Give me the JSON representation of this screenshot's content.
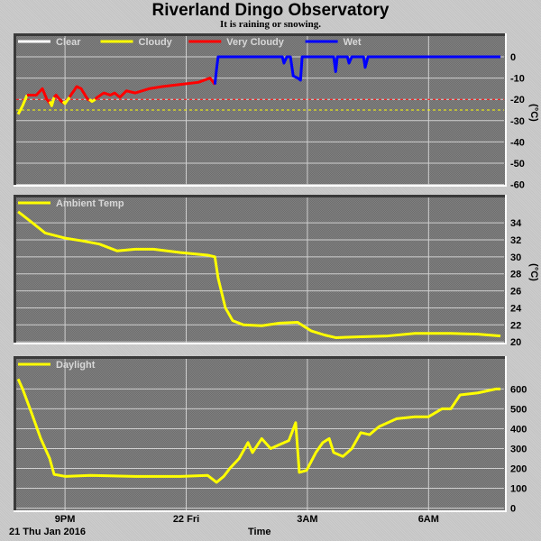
{
  "title": "Riverland Dingo Observatory",
  "subtitle": "It is raining or snowing.",
  "x_axis": {
    "label": "Time",
    "date_label": "21 Thu Jan 2016",
    "ticks": [
      {
        "h": 21,
        "label": "9PM"
      },
      {
        "h": 24,
        "label": "22 Fri"
      },
      {
        "h": 27,
        "label": "3AM"
      },
      {
        "h": 30,
        "label": "6AM"
      }
    ],
    "range": [
      19.77,
      31.89
    ]
  },
  "colors": {
    "clear": "#ffffff",
    "cloudy": "#ffff00",
    "very_cloudy": "#ff0000",
    "wet": "#0000ff",
    "plot_bg": "#7a7a7a"
  },
  "chart_data": [
    {
      "type": "line",
      "name": "cloud",
      "unit": "(°C)",
      "ylim": [
        -61,
        11
      ],
      "yticks": [
        0,
        -10,
        -20,
        -30,
        -40,
        -50,
        -60
      ],
      "thresholds": [
        {
          "value": -20,
          "color": "#ff0000"
        },
        {
          "value": -25,
          "color": "#ffff00"
        }
      ],
      "legend": [
        {
          "label": "Clear",
          "color": "#ffffff"
        },
        {
          "label": "Cloudy",
          "color": "#ffff00"
        },
        {
          "label": "Very Cloudy",
          "color": "#ff0000"
        },
        {
          "label": "Wet",
          "color": "#0000ff"
        }
      ],
      "segments": [
        {
          "color": "#ffff00",
          "points": [
            [
              19.84,
              -27
            ],
            [
              19.95,
              -23
            ],
            [
              20.06,
              -18
            ]
          ]
        },
        {
          "color": "#ff0000",
          "points": [
            [
              20.06,
              -18
            ],
            [
              20.29,
              -18
            ],
            [
              20.44,
              -15
            ],
            [
              20.55,
              -20
            ],
            [
              20.67,
              -23
            ]
          ]
        },
        {
          "color": "#ffff00",
          "points": [
            [
              20.62,
              -21
            ],
            [
              20.67,
              -23
            ],
            [
              20.73,
              -19
            ]
          ]
        },
        {
          "color": "#ff0000",
          "points": [
            [
              20.73,
              -19
            ],
            [
              20.78,
              -18
            ],
            [
              20.91,
              -21
            ],
            [
              21.0,
              -22
            ]
          ]
        },
        {
          "color": "#ffff00",
          "points": [
            [
              20.95,
              -21
            ],
            [
              21.0,
              -22
            ],
            [
              21.11,
              -19
            ]
          ]
        },
        {
          "color": "#ff0000",
          "points": [
            [
              21.11,
              -19
            ],
            [
              21.29,
              -14
            ],
            [
              21.4,
              -15
            ],
            [
              21.56,
              -20
            ],
            [
              21.67,
              -21
            ]
          ]
        },
        {
          "color": "#ffff00",
          "points": [
            [
              21.6,
              -20
            ],
            [
              21.67,
              -21
            ],
            [
              21.75,
              -20
            ]
          ]
        },
        {
          "color": "#ff0000",
          "points": [
            [
              21.75,
              -20
            ],
            [
              21.8,
              -19
            ],
            [
              21.96,
              -17
            ],
            [
              22.12,
              -18
            ],
            [
              22.23,
              -17
            ],
            [
              22.36,
              -19
            ],
            [
              22.52,
              -16
            ],
            [
              22.74,
              -17
            ],
            [
              23.08,
              -15
            ],
            [
              23.41,
              -14
            ],
            [
              23.86,
              -13
            ],
            [
              24.3,
              -12
            ],
            [
              24.59,
              -10
            ],
            [
              24.71,
              -13
            ]
          ]
        },
        {
          "color": "#0000ff",
          "points": [
            [
              24.71,
              -13
            ],
            [
              24.75,
              -6
            ],
            [
              24.79,
              0
            ],
            [
              26.38,
              0
            ],
            [
              26.42,
              -3
            ],
            [
              26.49,
              0
            ],
            [
              26.58,
              0
            ],
            [
              26.65,
              -9
            ],
            [
              26.76,
              -10
            ],
            [
              26.83,
              -11
            ],
            [
              26.87,
              0
            ],
            [
              27.65,
              0
            ],
            [
              27.7,
              -7
            ],
            [
              27.74,
              0
            ],
            [
              27.99,
              0
            ],
            [
              28.03,
              -3
            ],
            [
              28.1,
              0
            ],
            [
              28.39,
              0
            ],
            [
              28.43,
              -5
            ],
            [
              28.5,
              0
            ],
            [
              31.78,
              0
            ]
          ]
        }
      ]
    },
    {
      "type": "line",
      "name": "Ambient Temp",
      "unit": "(°C)",
      "ylim": [
        19.7,
        37.3
      ],
      "yticks": [
        34,
        32,
        30,
        28,
        26,
        24,
        22,
        20
      ],
      "color": "#ffff00",
      "points": [
        [
          19.84,
          35.3
        ],
        [
          20.06,
          34.5
        ],
        [
          20.51,
          32.8
        ],
        [
          21.0,
          32.2
        ],
        [
          21.4,
          31.9
        ],
        [
          21.85,
          31.5
        ],
        [
          22.29,
          30.7
        ],
        [
          22.74,
          30.9
        ],
        [
          23.19,
          30.9
        ],
        [
          23.86,
          30.5
        ],
        [
          24.53,
          30.2
        ],
        [
          24.71,
          30.0
        ],
        [
          24.79,
          27.5
        ],
        [
          24.97,
          24
        ],
        [
          25.15,
          22.5
        ],
        [
          25.42,
          22
        ],
        [
          25.87,
          21.9
        ],
        [
          26.31,
          22.2
        ],
        [
          26.76,
          22.3
        ],
        [
          27.09,
          21.3
        ],
        [
          27.43,
          20.8
        ],
        [
          27.7,
          20.5
        ],
        [
          28.32,
          20.6
        ],
        [
          28.99,
          20.7
        ],
        [
          29.66,
          21
        ],
        [
          30.55,
          21
        ],
        [
          31.22,
          20.9
        ],
        [
          31.78,
          20.7
        ]
      ]
    },
    {
      "type": "line",
      "name": "Daylight",
      "unit": "",
      "ylim": [
        -20,
        765
      ],
      "yticks": [
        600,
        500,
        400,
        300,
        200,
        100,
        0
      ],
      "color": "#ffff00",
      "points": [
        [
          19.84,
          650
        ],
        [
          19.95,
          600
        ],
        [
          20.17,
          480
        ],
        [
          20.4,
          350
        ],
        [
          20.62,
          250
        ],
        [
          20.73,
          170
        ],
        [
          21.0,
          160
        ],
        [
          21.63,
          165
        ],
        [
          22.74,
          160
        ],
        [
          23.86,
          160
        ],
        [
          24.53,
          165
        ],
        [
          24.75,
          130
        ],
        [
          24.93,
          160
        ],
        [
          25.08,
          200
        ],
        [
          25.31,
          250
        ],
        [
          25.53,
          330
        ],
        [
          25.64,
          280
        ],
        [
          25.87,
          350
        ],
        [
          26.09,
          300
        ],
        [
          26.31,
          320
        ],
        [
          26.54,
          340
        ],
        [
          26.71,
          430
        ],
        [
          26.8,
          180
        ],
        [
          26.98,
          190
        ],
        [
          27.21,
          280
        ],
        [
          27.38,
          330
        ],
        [
          27.54,
          350
        ],
        [
          27.65,
          280
        ],
        [
          27.88,
          260
        ],
        [
          28.1,
          300
        ],
        [
          28.32,
          380
        ],
        [
          28.54,
          370
        ],
        [
          28.77,
          410
        ],
        [
          29.21,
          450
        ],
        [
          29.66,
          460
        ],
        [
          30.0,
          460
        ],
        [
          30.33,
          500
        ],
        [
          30.55,
          500
        ],
        [
          30.78,
          570
        ],
        [
          31.22,
          580
        ],
        [
          31.67,
          600
        ],
        [
          31.78,
          600
        ]
      ]
    }
  ]
}
